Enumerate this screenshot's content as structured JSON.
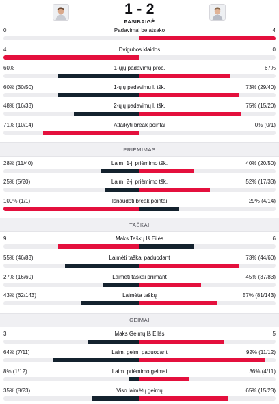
{
  "header": {
    "home_score": "1",
    "away_score": "2",
    "score_dash": "-",
    "status": "PASIBAIGĖ",
    "home_avatar_icon": "player-photo",
    "away_avatar_icon": "player-photo"
  },
  "colors": {
    "winner_red": "#e4103d",
    "loser_dark": "#14222e",
    "track": "#ececef"
  },
  "sections": [
    {
      "title": "",
      "stats": [
        {
          "label": "Padavimai be atsako",
          "left": "0",
          "right": "4",
          "left_share": 0,
          "right_share": 1,
          "winner": "right"
        },
        {
          "label": "Dvigubos klaidos",
          "left": "4",
          "right": "0",
          "left_share": 1,
          "right_share": 0,
          "winner": "left"
        },
        {
          "label": "1-ųjų padavimų proc.",
          "left": "60%",
          "right": "67%",
          "left_share": 0.6,
          "right_share": 0.67,
          "winner": "right"
        },
        {
          "label": "1-ųjų padavimų l. tšk.",
          "left": "60% (30/50)",
          "right": "73% (29/40)",
          "left_share": 0.6,
          "right_share": 0.73,
          "winner": "right"
        },
        {
          "label": "2-ųjų padavimų l. tšk.",
          "left": "48% (16/33)",
          "right": "75% (15/20)",
          "left_share": 0.48,
          "right_share": 0.75,
          "winner": "right"
        },
        {
          "label": "Atlaikyti break pointai",
          "left": "71% (10/14)",
          "right": "0% (0/1)",
          "left_share": 0.71,
          "right_share": 0,
          "winner": "left"
        }
      ]
    },
    {
      "title": "PRIĖMIMAS",
      "stats": [
        {
          "label": "Laim. 1-ji priėmimo tšk.",
          "left": "28% (11/40)",
          "right": "40% (20/50)",
          "left_share": 0.28,
          "right_share": 0.4,
          "winner": "right"
        },
        {
          "label": "Laim. 2-ji priėmimo tšk.",
          "left": "25% (5/20)",
          "right": "52% (17/33)",
          "left_share": 0.25,
          "right_share": 0.52,
          "winner": "right"
        },
        {
          "label": "Išnaudoti break pointai",
          "left": "100% (1/1)",
          "right": "29% (4/14)",
          "left_share": 1,
          "right_share": 0.29,
          "winner": "left"
        }
      ]
    },
    {
      "title": "TAŠKAI",
      "stats": [
        {
          "label": "Maks Taškų Iš Eilės",
          "left": "9",
          "right": "6",
          "left_share": 0.6,
          "right_share": 0.4,
          "winner": "left"
        },
        {
          "label": "Laimėti taškai paduodant",
          "left": "55% (46/83)",
          "right": "73% (44/60)",
          "left_share": 0.55,
          "right_share": 0.73,
          "winner": "right"
        },
        {
          "label": "Laimėti taškai priimant",
          "left": "27% (16/60)",
          "right": "45% (37/83)",
          "left_share": 0.27,
          "right_share": 0.45,
          "winner": "right"
        },
        {
          "label": "Laimėta taškų",
          "left": "43% (62/143)",
          "right": "57% (81/143)",
          "left_share": 0.43,
          "right_share": 0.57,
          "winner": "right"
        }
      ]
    },
    {
      "title": "GEIMAI",
      "stats": [
        {
          "label": "Maks Geimų Iš Eilės",
          "left": "3",
          "right": "5",
          "left_share": 0.375,
          "right_share": 0.625,
          "winner": "right"
        },
        {
          "label": "Laim. geim. paduodant",
          "left": "64% (7/11)",
          "right": "92% (11/12)",
          "left_share": 0.64,
          "right_share": 0.92,
          "winner": "right"
        },
        {
          "label": "Laim. priėmimo geimai",
          "left": "8% (1/12)",
          "right": "36% (4/11)",
          "left_share": 0.08,
          "right_share": 0.36,
          "winner": "right"
        },
        {
          "label": "Viso laimėtų geimų",
          "left": "35% (8/23)",
          "right": "65% (15/23)",
          "left_share": 0.35,
          "right_share": 0.65,
          "winner": "right"
        }
      ]
    }
  ]
}
